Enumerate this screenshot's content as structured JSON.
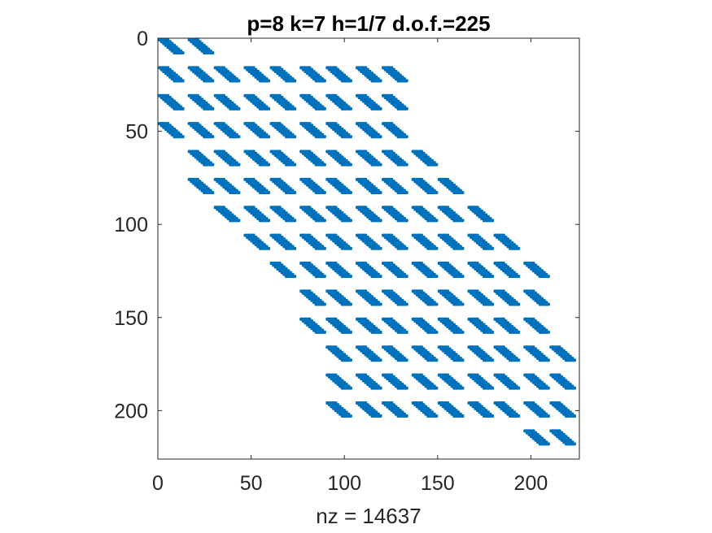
{
  "chart_data": {
    "type": "scatter",
    "plot_style": "spy (sparsity pattern)",
    "title": "p=8 k=7 h=1/7 d.o.f.=225",
    "xlabel": "nz = 14637",
    "ylabel": "",
    "xlim": [
      0,
      226
    ],
    "ylim": [
      0,
      226
    ],
    "y_direction": "reversed",
    "x_ticks": [
      0,
      50,
      100,
      150,
      200
    ],
    "y_ticks": [
      0,
      50,
      100,
      150,
      200
    ],
    "grid": false,
    "legend": "none",
    "marker_color": "#0072BD",
    "matrix_size": 225,
    "nonzero_count": 14637,
    "block_size": 8,
    "block_pitch": 15,
    "row_blocks": [
      {
        "row_start": 0,
        "col_starts": [
          0,
          16
        ]
      },
      {
        "row_start": 15,
        "col_starts": [
          0,
          16,
          30,
          46,
          60,
          76,
          90,
          106,
          120
        ]
      },
      {
        "row_start": 30,
        "col_starts": [
          0,
          16,
          30,
          46,
          60,
          76,
          90,
          106,
          120
        ]
      },
      {
        "row_start": 45,
        "col_starts": [
          0,
          16,
          30,
          46,
          60,
          76,
          90,
          106,
          120
        ]
      },
      {
        "row_start": 60,
        "col_starts": [
          16,
          30,
          46,
          60,
          76,
          90,
          106,
          120,
          136
        ]
      },
      {
        "row_start": 75,
        "col_starts": [
          16,
          30,
          46,
          60,
          76,
          90,
          106,
          120,
          136,
          150
        ]
      },
      {
        "row_start": 90,
        "col_starts": [
          30,
          46,
          60,
          76,
          90,
          106,
          120,
          136,
          150,
          166
        ]
      },
      {
        "row_start": 105,
        "col_starts": [
          46,
          60,
          76,
          90,
          106,
          120,
          136,
          150,
          166,
          180
        ]
      },
      {
        "row_start": 120,
        "col_starts": [
          60,
          76,
          90,
          106,
          120,
          136,
          150,
          166,
          180,
          196
        ]
      },
      {
        "row_start": 135,
        "col_starts": [
          76,
          90,
          106,
          120,
          136,
          150,
          166,
          180,
          196
        ]
      },
      {
        "row_start": 150,
        "col_starts": [
          76,
          90,
          106,
          120,
          136,
          150,
          166,
          180,
          196
        ]
      },
      {
        "row_start": 165,
        "col_starts": [
          90,
          106,
          120,
          136,
          150,
          166,
          180,
          196,
          210
        ]
      },
      {
        "row_start": 180,
        "col_starts": [
          90,
          106,
          120,
          136,
          150,
          166,
          180,
          196,
          210
        ]
      },
      {
        "row_start": 195,
        "col_starts": [
          90,
          106,
          120,
          136,
          150,
          166,
          180,
          196,
          210
        ]
      },
      {
        "row_start": 210,
        "col_starts": [
          196,
          210
        ]
      }
    ]
  }
}
